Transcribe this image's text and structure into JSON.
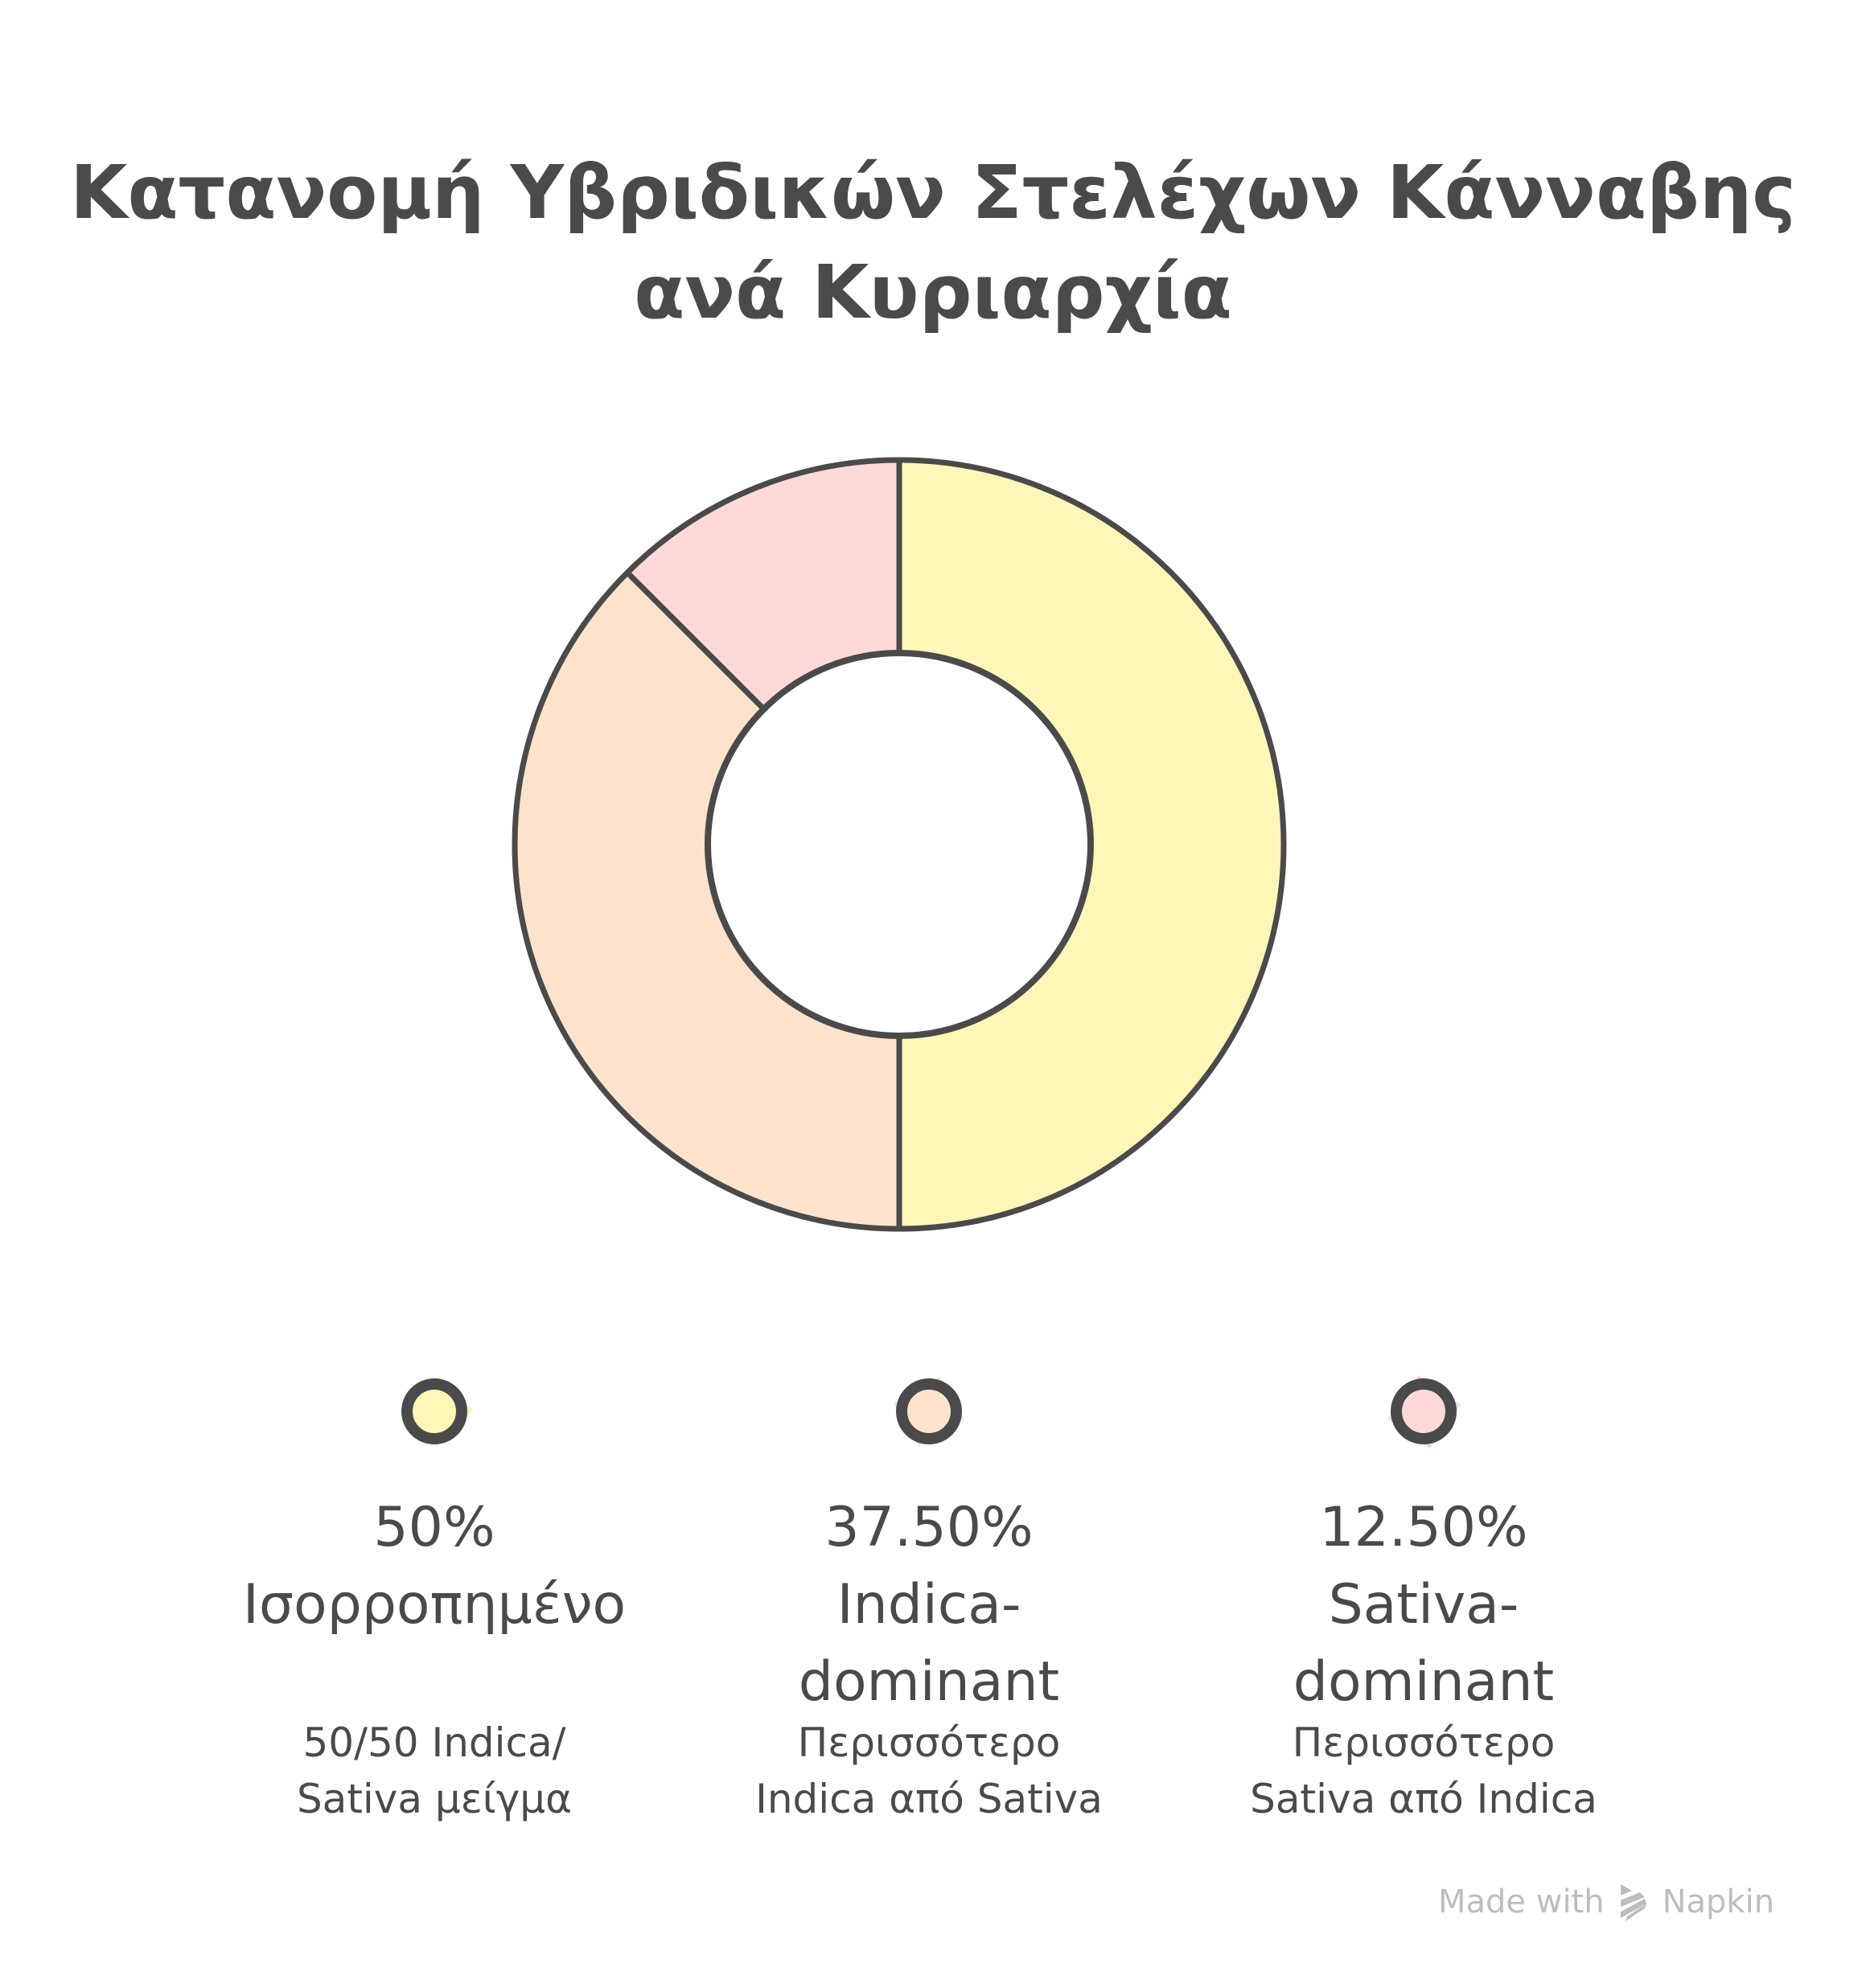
{
  "title": {
    "line1": "Κατανομή Υβριδικών Στελέχων Κάνναβης",
    "line2": "ανά Κυριαρχία"
  },
  "colors": {
    "stroke": "#4a4a4a",
    "balanced": "#fff7b8",
    "indica_dominant": "#fde3cb",
    "sativa_dominant": "#fdd9d7"
  },
  "legend": [
    {
      "value": "50%",
      "label": "Ισορροπημένο",
      "description": "50/50 Indica/\nSativa μείγμα",
      "color": "#fff7b8"
    },
    {
      "value": "37.50%",
      "label": "Indica-\ndominant",
      "description": "Περισσότερο\nIndica από Sativa",
      "color": "#fde3cb"
    },
    {
      "value": "12.50%",
      "label": "Sativa-\ndominant",
      "description": "Περισσότερο\nSativa από Indica",
      "color": "#fdd9d7"
    }
  ],
  "watermark": {
    "prefix": "Made with",
    "brand": "Napkin"
  },
  "chart_data": {
    "type": "pie",
    "variant": "donut",
    "title": "Κατανομή Υβριδικών Στελέχων Κάνναβης ανά Κυριαρχία",
    "categories": [
      "Ισορροπημένο",
      "Indica-dominant",
      "Sativa-dominant"
    ],
    "values": [
      50,
      37.5,
      12.5
    ],
    "value_labels": [
      "50%",
      "37.50%",
      "12.50%"
    ],
    "descriptions": [
      "50/50 Indica/Sativa μείγμα",
      "Περισσότερο Indica από Sativa",
      "Περισσότερο Sativa από Indica"
    ],
    "colors": [
      "#fff7b8",
      "#fde3cb",
      "#fdd9d7"
    ],
    "start_angle_deg": 0,
    "direction": "clockwise from 12 o'clock",
    "legend_position": "bottom",
    "grid": false
  }
}
